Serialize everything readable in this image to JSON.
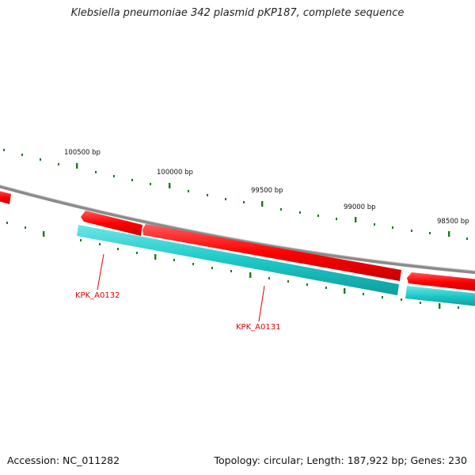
{
  "title": "Klebsiella pneumoniae 342 plasmid pKP187, complete sequence",
  "footer": {
    "accession": "Accession: NC_011282",
    "summary": "Topology: circular; Length: 187,922 bp; Genes: 230"
  },
  "colors": {
    "backbone": "#8a8a8a",
    "forward_gene": "#ff0000",
    "reverse_feature": "#1ec8c8",
    "ticks": "#1a7a1a",
    "gene_label": "#e00000"
  },
  "ticks": [
    {
      "label": "100500 bp"
    },
    {
      "label": "100000 bp"
    },
    {
      "label": "99500 bp"
    },
    {
      "label": "99000 bp"
    },
    {
      "label": "98500 bp"
    }
  ],
  "genes": [
    {
      "label": "KPK_A0132"
    },
    {
      "label": "KPK_A0131"
    }
  ]
}
